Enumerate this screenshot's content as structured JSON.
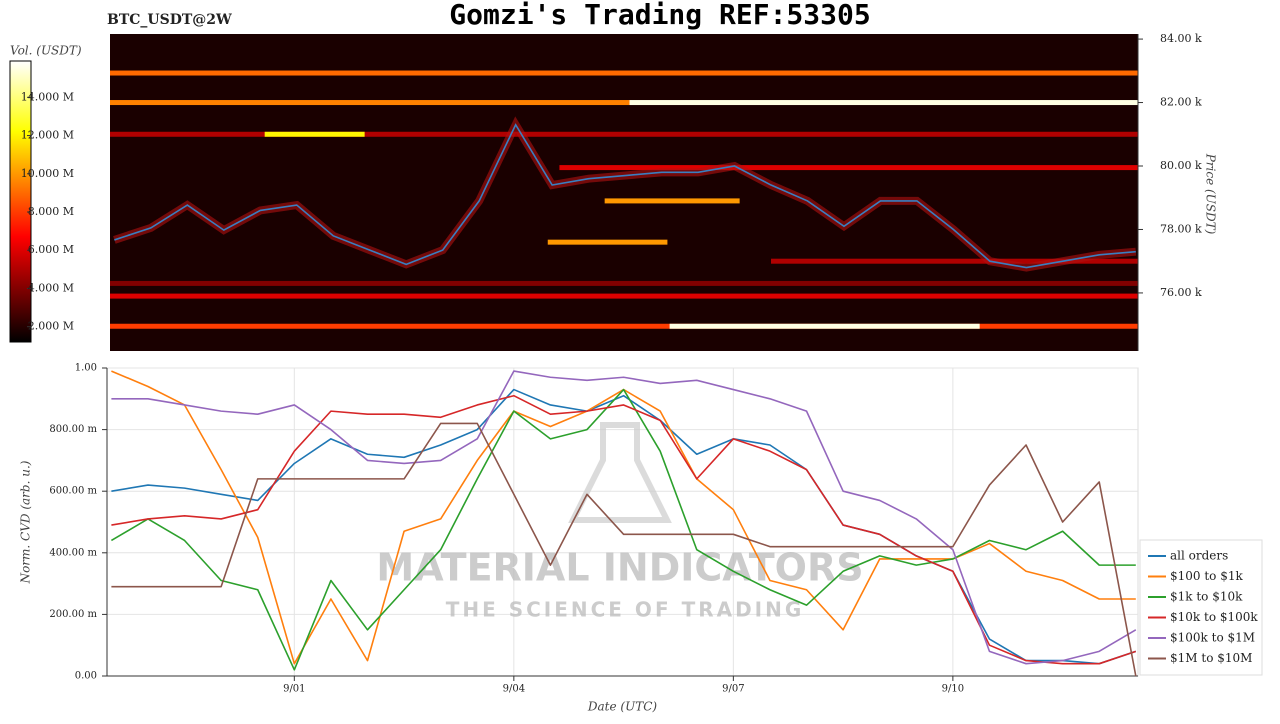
{
  "header": {
    "title": "Gomzi's Trading REF:53305",
    "subtitle": "BTC_USDT@2W"
  },
  "watermark": {
    "brand": "MATERIAL INDICATORS",
    "tagline": "THE SCIENCE OF TRADING"
  },
  "chart_data": [
    {
      "type": "heatmap",
      "colormap": "hot",
      "xlim": [
        -1.56,
        12.53
      ],
      "x": [
        -1.5,
        -1,
        -0.5,
        0,
        0.5,
        1,
        1.5,
        2,
        2.5,
        3,
        3.5,
        4,
        4.5,
        5,
        5.5,
        6,
        6.5,
        7,
        7.5,
        8,
        8.5,
        9,
        9.5,
        10,
        10.5,
        11,
        11.5,
        12,
        12.5
      ],
      "price": {
        "color": "#3a7fc0",
        "values": [
          77670,
          78050,
          78770,
          77980,
          78600,
          78770,
          77800,
          77350,
          76900,
          77350,
          78900,
          81300,
          79400,
          79600,
          79700,
          79800,
          79800,
          80000,
          79400,
          78900,
          78100,
          78900,
          78900,
          78000,
          77000,
          76800,
          77000,
          77200,
          77300
        ]
      },
      "levels": [
        {
          "price": 82930,
          "start": -1.56,
          "end": 12.53,
          "volume": 9000000
        },
        {
          "price": 82000,
          "start": -1.56,
          "end": 5.56,
          "volume": 9500000
        },
        {
          "price": 82000,
          "start": 5.56,
          "end": 12.53,
          "volume": 15500000
        },
        {
          "price": 81000,
          "start": -1.56,
          "end": 12.53,
          "volume": 5000000
        },
        {
          "price": 81000,
          "start": 0.56,
          "end": 1.93,
          "volume": 12000000
        },
        {
          "price": 79950,
          "start": 4.6,
          "end": 12.53,
          "volume": 6000000
        },
        {
          "price": 78900,
          "start": 5.22,
          "end": 7.07,
          "volume": 10000000
        },
        {
          "price": 77600,
          "start": 4.44,
          "end": 6.08,
          "volume": 10000000
        },
        {
          "price": 77000,
          "start": 7.5,
          "end": 12.53,
          "volume": 5000000
        },
        {
          "price": 76300,
          "start": -1.56,
          "end": 12.53,
          "volume": 4000000
        },
        {
          "price": 75900,
          "start": -1.56,
          "end": 12.53,
          "volume": 6000000
        },
        {
          "price": 74950,
          "start": -1.56,
          "end": 12.53,
          "volume": 8000000
        },
        {
          "price": 74950,
          "start": 6.11,
          "end": 10.36,
          "volume": 15500000
        }
      ],
      "ylabel": "Price (USDT)",
      "ylim": [
        74170,
        84160
      ],
      "yticks": [
        {
          "value": 76000,
          "label": "76.00 k"
        },
        {
          "value": 78000,
          "label": "78.00 k"
        },
        {
          "value": 80000,
          "label": "80.00 k"
        },
        {
          "value": 82000,
          "label": "82.00 k"
        },
        {
          "value": 84000,
          "label": "84.00 k"
        }
      ],
      "colorbar": {
        "label": "Vol. (USDT)",
        "lim": [
          1200000,
          15900000
        ],
        "ticks": [
          {
            "value": 2000000,
            "label": "2.000 M"
          },
          {
            "value": 4000000,
            "label": "4.000 M"
          },
          {
            "value": 6000000,
            "label": "6.000 M"
          },
          {
            "value": 8000000,
            "label": "8.000 M"
          },
          {
            "value": 10000000,
            "label": "10.000 M"
          },
          {
            "value": 12000000,
            "label": "12.000 M"
          },
          {
            "value": 14000000,
            "label": "14.000 M"
          }
        ]
      }
    },
    {
      "type": "line",
      "grid": true,
      "legend": "right",
      "xlabel": "Date (UTC)",
      "ylabel": "Norm. CVD (arb. u.)",
      "xlim": [
        -1.56,
        12.53
      ],
      "xticks": [
        {
          "value": 1,
          "label": "9/01"
        },
        {
          "value": 4,
          "label": "9/04"
        },
        {
          "value": 7,
          "label": "9/07"
        },
        {
          "value": 10,
          "label": "9/10"
        }
      ],
      "ylim": [
        0,
        1
      ],
      "yticks": [
        {
          "value": 0,
          "label": "0.00"
        },
        {
          "value": 0.2,
          "label": "200.00 m"
        },
        {
          "value": 0.4,
          "label": "400.00 m"
        },
        {
          "value": 0.6,
          "label": "600.00 m"
        },
        {
          "value": 0.8,
          "label": "800.00 m"
        },
        {
          "value": 1,
          "label": "1.00"
        }
      ],
      "x": [
        -1.5,
        -1,
        -0.5,
        0,
        0.5,
        1,
        1.5,
        2,
        2.5,
        3,
        3.5,
        4,
        4.5,
        5,
        5.5,
        6,
        6.5,
        7,
        7.5,
        8,
        8.5,
        9,
        9.5,
        10,
        10.5,
        11,
        11.5,
        12,
        12.5
      ],
      "series": [
        {
          "name": "all orders",
          "color": "#1f77b4",
          "values": [
            0.6,
            0.62,
            0.61,
            0.59,
            0.57,
            0.69,
            0.77,
            0.72,
            0.71,
            0.75,
            0.8,
            0.93,
            0.88,
            0.86,
            0.91,
            0.83,
            0.72,
            0.77,
            0.75,
            0.67,
            0.49,
            0.46,
            0.39,
            0.34,
            0.12,
            0.05,
            0.05,
            0.04,
            0.08
          ]
        },
        {
          "name": "$100 to $1k",
          "color": "#ff7f0e",
          "values": [
            0.99,
            0.94,
            0.88,
            0.67,
            0.45,
            0.04,
            0.25,
            0.05,
            0.47,
            0.51,
            0.7,
            0.86,
            0.81,
            0.86,
            0.93,
            0.86,
            0.64,
            0.54,
            0.31,
            0.28,
            0.15,
            0.38,
            0.38,
            0.38,
            0.43,
            0.34,
            0.31,
            0.25,
            0.25
          ]
        },
        {
          "name": "$1k to $10k",
          "color": "#2ca02c",
          "values": [
            0.44,
            0.51,
            0.44,
            0.31,
            0.28,
            0.02,
            0.31,
            0.15,
            0.28,
            0.41,
            0.64,
            0.86,
            0.77,
            0.8,
            0.93,
            0.73,
            0.41,
            0.34,
            0.28,
            0.23,
            0.34,
            0.39,
            0.36,
            0.38,
            0.44,
            0.41,
            0.47,
            0.36,
            0.36
          ]
        },
        {
          "name": "$10k to $100k",
          "color": "#d62728",
          "values": [
            0.49,
            0.51,
            0.52,
            0.51,
            0.54,
            0.73,
            0.86,
            0.85,
            0.85,
            0.84,
            0.88,
            0.91,
            0.85,
            0.86,
            0.88,
            0.83,
            0.64,
            0.77,
            0.73,
            0.67,
            0.49,
            0.46,
            0.39,
            0.34,
            0.1,
            0.05,
            0.04,
            0.04,
            0.08
          ]
        },
        {
          "name": "$100k to $1M",
          "color": "#9467bd",
          "values": [
            0.9,
            0.9,
            0.88,
            0.86,
            0.85,
            0.88,
            0.8,
            0.7,
            0.69,
            0.7,
            0.77,
            0.99,
            0.97,
            0.96,
            0.97,
            0.95,
            0.96,
            0.93,
            0.9,
            0.86,
            0.6,
            0.57,
            0.51,
            0.41,
            0.08,
            0.04,
            0.05,
            0.08,
            0.15
          ]
        },
        {
          "name": "$1M to $10M",
          "color": "#8c564b",
          "values": [
            0.29,
            0.29,
            0.29,
            0.29,
            0.64,
            0.64,
            0.64,
            0.64,
            0.64,
            0.82,
            0.82,
            0.59,
            0.36,
            0.59,
            0.46,
            0.46,
            0.46,
            0.46,
            0.42,
            0.42,
            0.42,
            0.42,
            0.42,
            0.42,
            0.62,
            0.75,
            0.5,
            0.63,
            0.0
          ]
        }
      ]
    }
  ]
}
